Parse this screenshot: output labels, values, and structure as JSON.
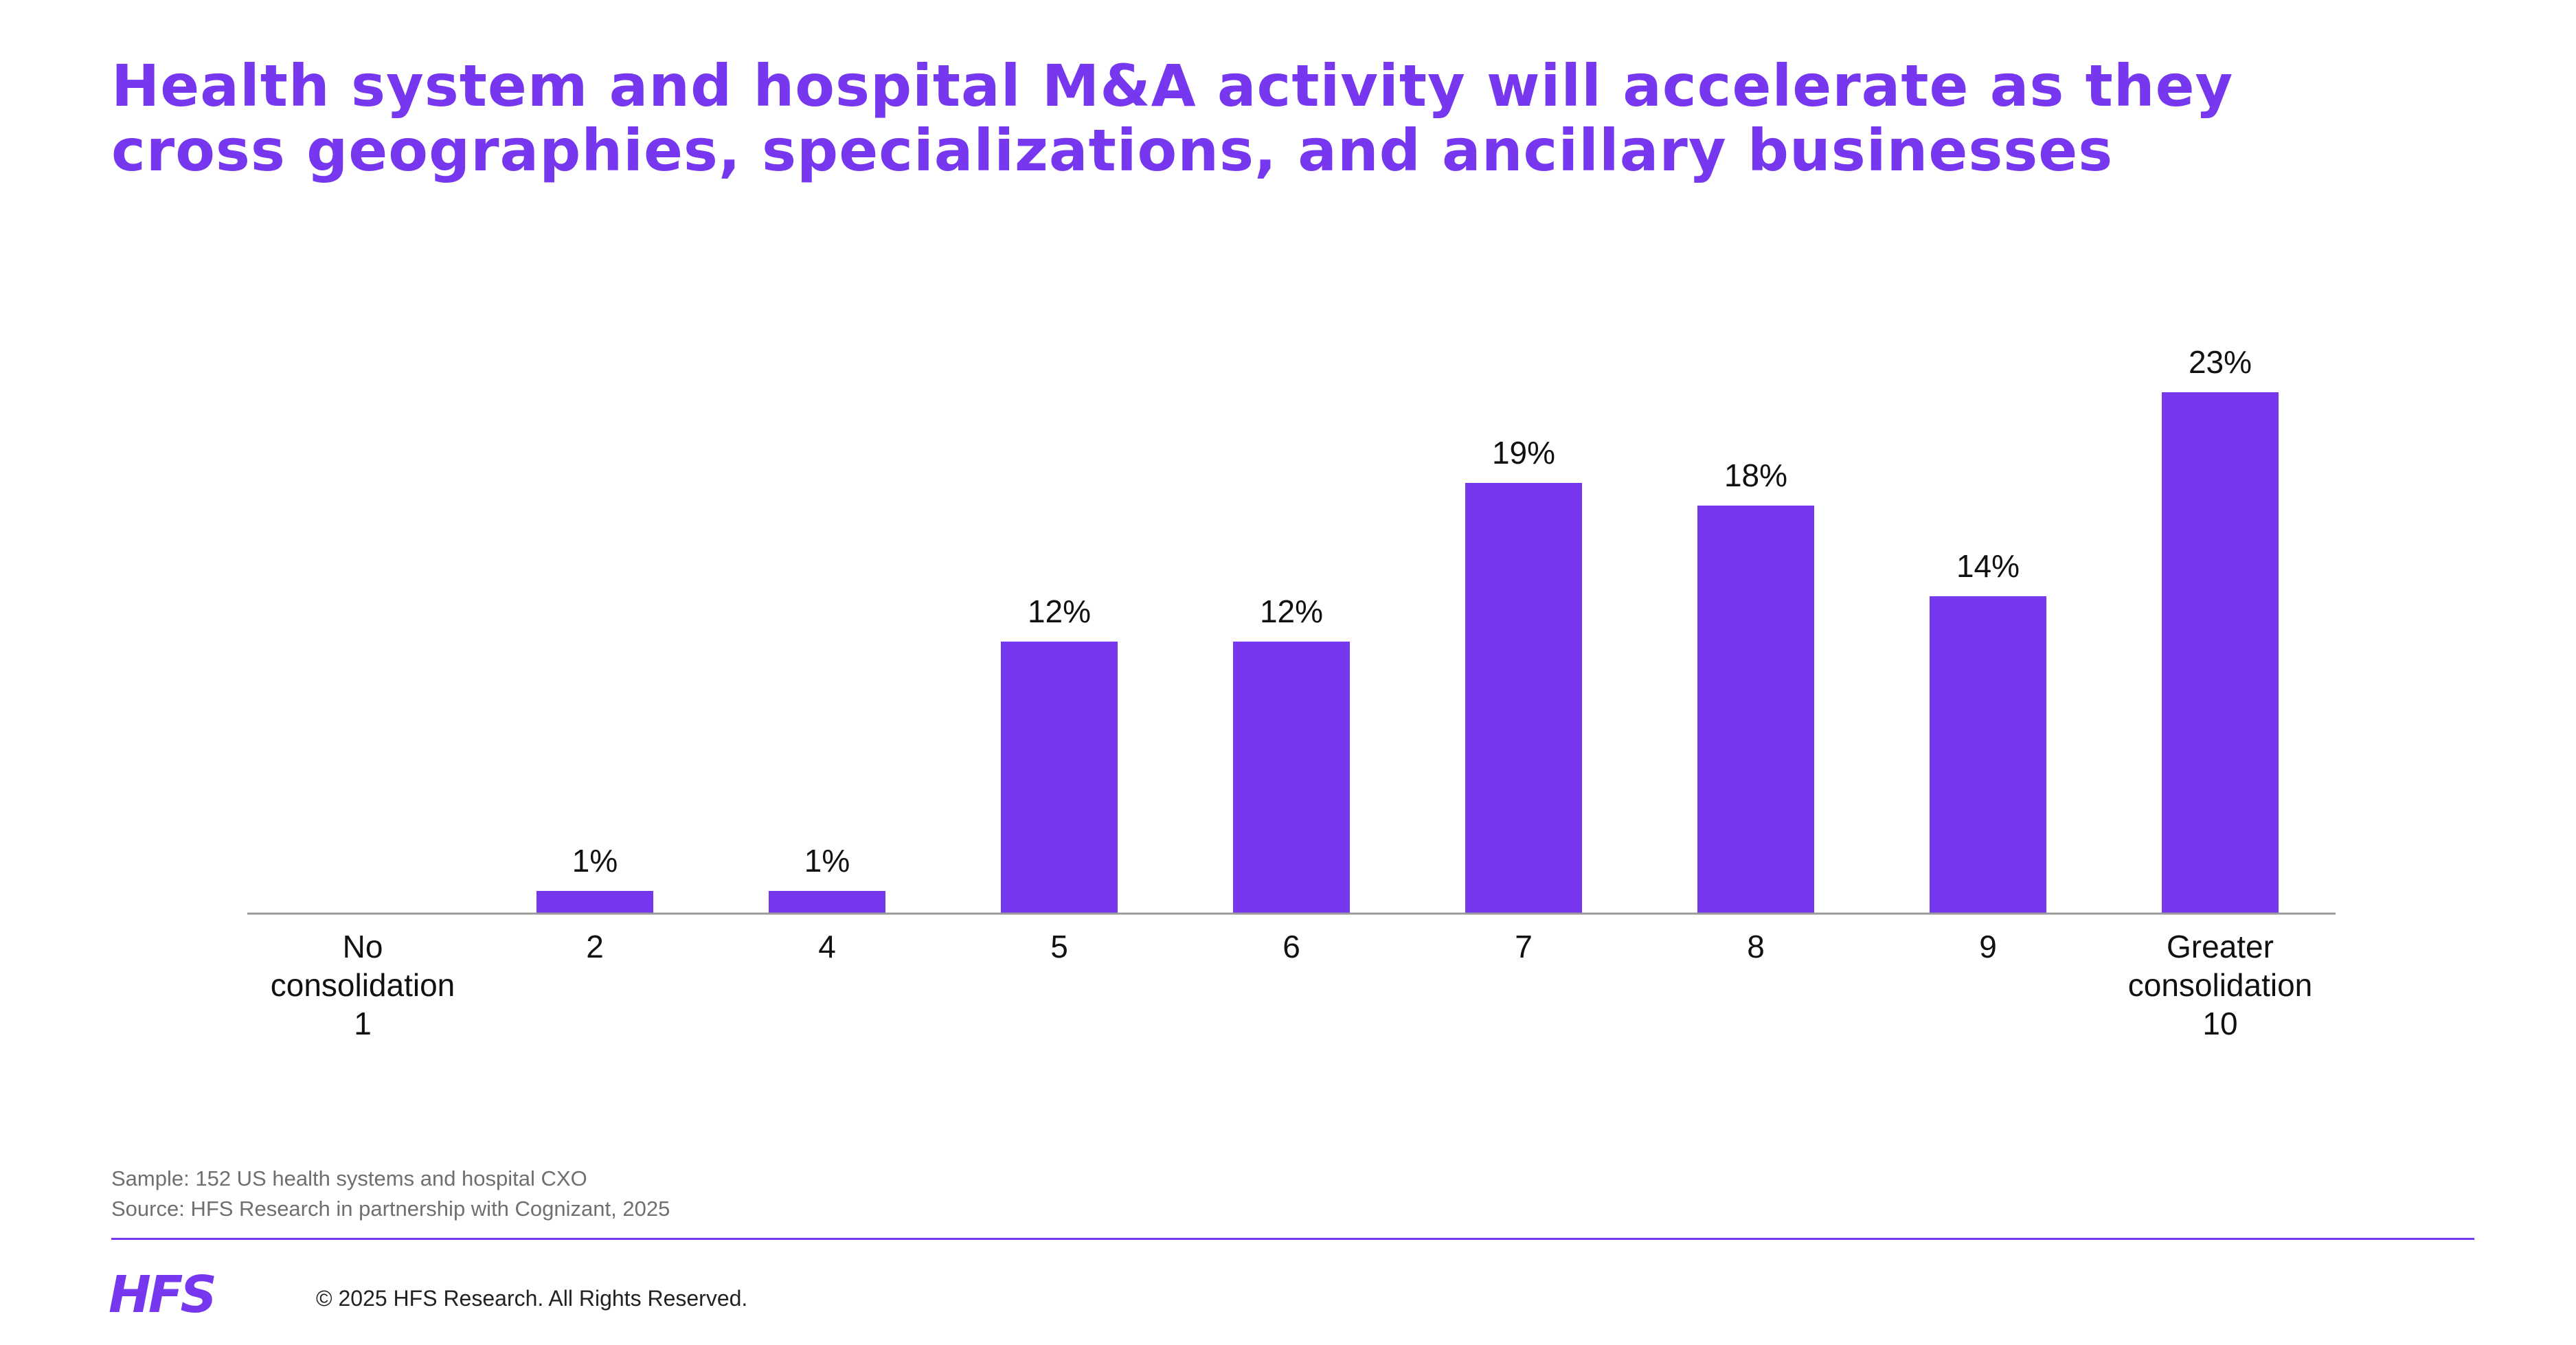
{
  "title_lines": [
    "Health system and hospital M&A activity will accelerate as they",
    "cross geographies, specializations, and ancillary businesses"
  ],
  "chart_data": {
    "type": "bar",
    "title": "Health system and hospital M&A activity will accelerate as they cross geographies, specializations, and ancillary businesses",
    "categories": [
      [
        "No",
        "consolidation",
        "1"
      ],
      [
        "2"
      ],
      [
        "4"
      ],
      [
        "5"
      ],
      [
        "6"
      ],
      [
        "7"
      ],
      [
        "8"
      ],
      [
        "9"
      ],
      [
        "Greater",
        "consolidation",
        "10"
      ]
    ],
    "values": [
      0,
      1,
      1,
      12,
      12,
      19,
      18,
      14,
      23
    ],
    "value_labels": [
      "",
      "1%",
      "1%",
      "12%",
      "12%",
      "19%",
      "18%",
      "14%",
      "23%"
    ],
    "xlabel": "",
    "ylabel": "",
    "ylim": [
      0,
      25
    ],
    "grid": false,
    "legend": "none",
    "bar_color": "#7637ee"
  },
  "footnotes": {
    "sample": "Sample: 152 US health systems and hospital CXO",
    "source": "Source: HFS Research in partnership with Cognizant, 2025"
  },
  "footer": {
    "logo_text": "HFS",
    "copyright": "© 2025 HFS Research. All Rights Reserved."
  },
  "colors": {
    "accent": "#7637ee",
    "axis": "#9a9a9a",
    "text": "#111111"
  }
}
